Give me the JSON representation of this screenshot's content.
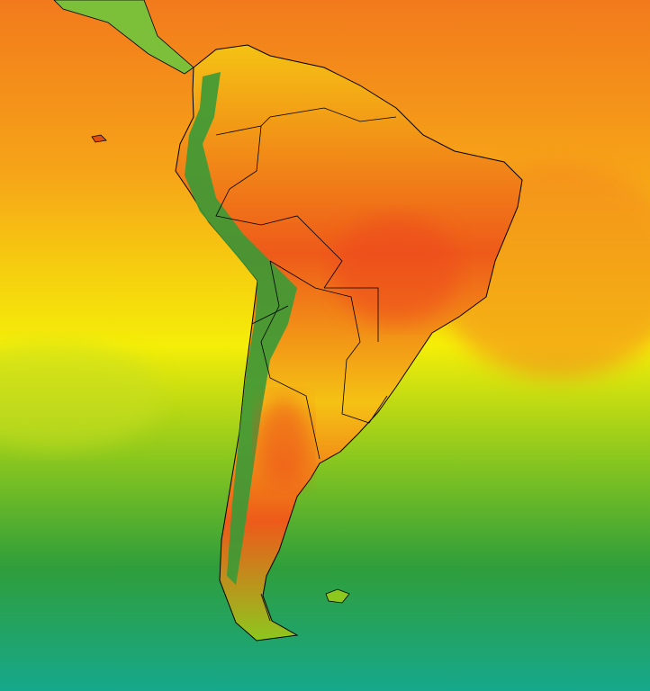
{
  "map": {
    "colors": {
      "ocean_top": "#f27a1c",
      "ocean_upper": "#f6a418",
      "ocean_mid": "#f5ee08",
      "ocean_lower": "#8cc81e",
      "ocean_south": "#2f9e3a",
      "ocean_bottom": "#16a88c",
      "land_hot": "#ee5a1a",
      "land_warm": "#f5c214",
      "andes": "#3a9a36",
      "border": "#000000"
    }
  }
}
